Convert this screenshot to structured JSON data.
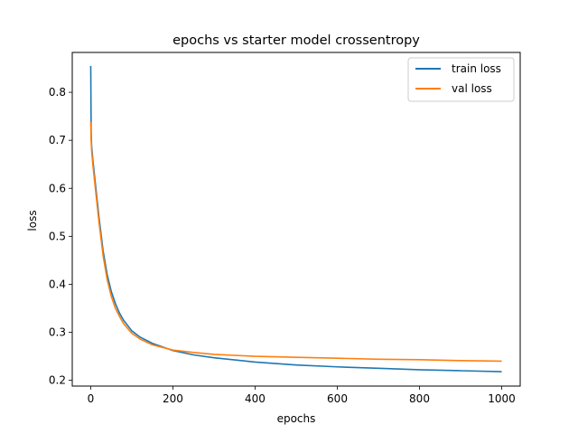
{
  "chart_data": {
    "type": "line",
    "title": "epochs vs starter model crossentropy",
    "xlabel": "epochs",
    "ylabel": "loss",
    "xlim": [
      -45,
      1045
    ],
    "ylim": [
      0.188,
      0.883
    ],
    "xticks": [
      0,
      200,
      400,
      600,
      800,
      1000
    ],
    "yticks": [
      0.2,
      0.3,
      0.4,
      0.5,
      0.6,
      0.7,
      0.8
    ],
    "grid": false,
    "legend_position": "top-right",
    "series": [
      {
        "name": "train loss",
        "color": "#1f77b4",
        "x": [
          0,
          1,
          2,
          3,
          5,
          10,
          20,
          30,
          40,
          50,
          60,
          70,
          80,
          100,
          120,
          150,
          200,
          250,
          300,
          400,
          500,
          600,
          700,
          800,
          900,
          1000
        ],
        "y": [
          0.855,
          0.72,
          0.69,
          0.68,
          0.66,
          0.62,
          0.54,
          0.47,
          0.42,
          0.385,
          0.36,
          0.34,
          0.325,
          0.303,
          0.29,
          0.277,
          0.262,
          0.253,
          0.247,
          0.238,
          0.232,
          0.228,
          0.225,
          0.222,
          0.22,
          0.218
        ]
      },
      {
        "name": "val loss",
        "color": "#ff7f0e",
        "x": [
          0,
          1,
          2,
          3,
          5,
          10,
          20,
          30,
          40,
          50,
          60,
          70,
          80,
          100,
          120,
          150,
          200,
          250,
          300,
          400,
          500,
          600,
          700,
          800,
          900,
          1000
        ],
        "y": [
          0.738,
          0.7,
          0.68,
          0.67,
          0.65,
          0.61,
          0.53,
          0.46,
          0.41,
          0.375,
          0.35,
          0.333,
          0.318,
          0.298,
          0.286,
          0.274,
          0.263,
          0.258,
          0.254,
          0.25,
          0.248,
          0.246,
          0.244,
          0.243,
          0.241,
          0.24
        ]
      }
    ]
  }
}
